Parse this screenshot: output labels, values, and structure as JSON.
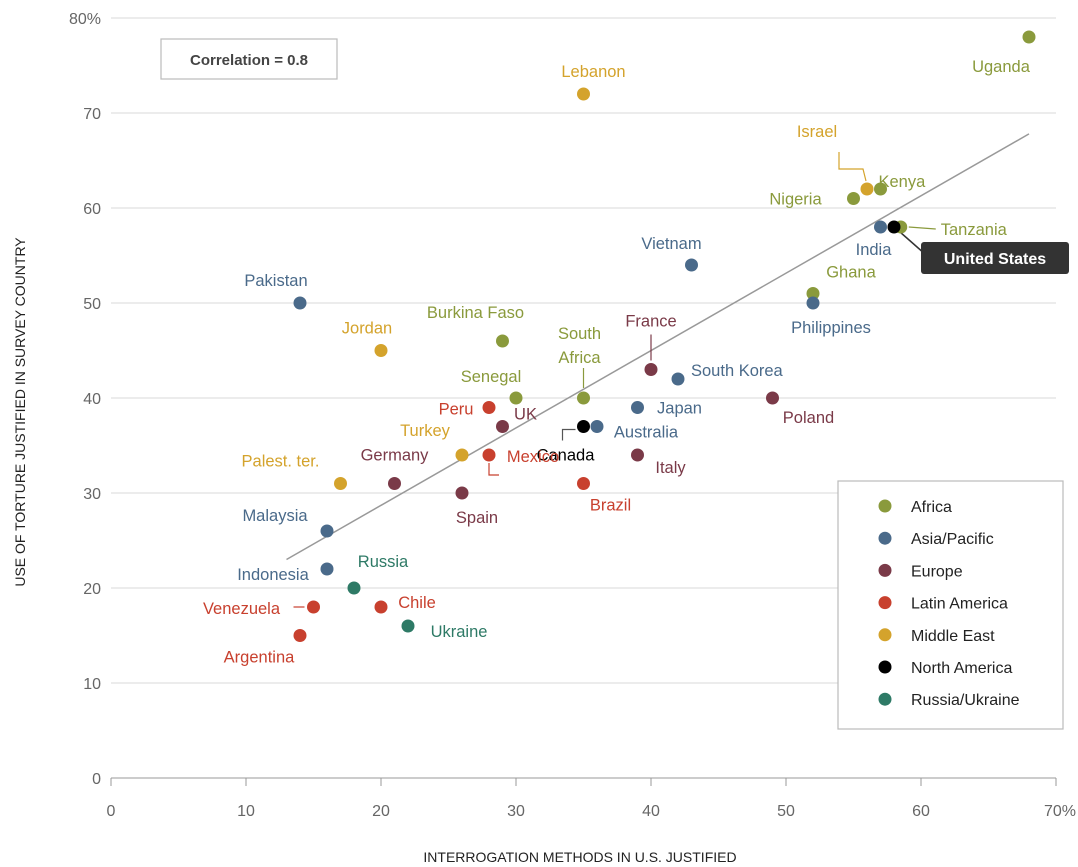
{
  "chart_data": {
    "type": "scatter",
    "xlabel": "INTERROGATION METHODS IN U.S. JUSTIFIED",
    "ylabel": "USE OF TORTURE JUSTIFIED IN SURVEY COUNTRY",
    "xlim": [
      0,
      70
    ],
    "ylim": [
      0,
      80
    ],
    "x_ticks": [
      "0",
      "10",
      "20",
      "30",
      "40",
      "50",
      "60",
      "70%"
    ],
    "y_ticks": [
      "0",
      "10",
      "20",
      "30",
      "40",
      "50",
      "60",
      "70",
      "80%"
    ],
    "grid": "horizontal",
    "annotation": "Correlation = 0.8",
    "trendline": {
      "x": [
        13,
        68
      ],
      "y": [
        23,
        67.8
      ]
    },
    "legend_position": "bottom-right",
    "groups": [
      {
        "name": "Africa",
        "color": "#8a9a3c"
      },
      {
        "name": "Asia/Pacific",
        "color": "#4a6a8a"
      },
      {
        "name": "Europe",
        "color": "#7a3a48"
      },
      {
        "name": "Latin America",
        "color": "#c8402e"
      },
      {
        "name": "Middle East",
        "color": "#d4a32c"
      },
      {
        "name": "North America",
        "color": "#000000"
      },
      {
        "name": "Russia/Ukraine",
        "color": "#2e7a66"
      }
    ],
    "points": [
      {
        "label": "Uganda",
        "x": 68,
        "y": 78,
        "group": "Africa"
      },
      {
        "label": "Lebanon",
        "x": 35,
        "y": 72,
        "group": "Middle East"
      },
      {
        "label": "Israel",
        "x": 56,
        "y": 62,
        "group": "Middle East"
      },
      {
        "label": "Kenya",
        "x": 57,
        "y": 62,
        "group": "Africa"
      },
      {
        "label": "Nigeria",
        "x": 55,
        "y": 61,
        "group": "Africa"
      },
      {
        "label": "India",
        "x": 57,
        "y": 58,
        "group": "Asia/Pacific"
      },
      {
        "label": "Tanzania",
        "x": 58.5,
        "y": 58,
        "group": "Africa"
      },
      {
        "label": "United States",
        "x": 58,
        "y": 58,
        "group": "North America"
      },
      {
        "label": "Vietnam",
        "x": 43,
        "y": 54,
        "group": "Asia/Pacific"
      },
      {
        "label": "Ghana",
        "x": 52,
        "y": 51,
        "group": "Africa"
      },
      {
        "label": "Philippines",
        "x": 52,
        "y": 50,
        "group": "Asia/Pacific"
      },
      {
        "label": "Pakistan",
        "x": 14,
        "y": 50,
        "group": "Asia/Pacific"
      },
      {
        "label": "Burkina Faso",
        "x": 29,
        "y": 46,
        "group": "Africa"
      },
      {
        "label": "Jordan",
        "x": 20,
        "y": 45,
        "group": "Middle East"
      },
      {
        "label": "France",
        "x": 40,
        "y": 43,
        "group": "Europe"
      },
      {
        "label": "South Korea",
        "x": 42,
        "y": 42,
        "group": "Asia/Pacific"
      },
      {
        "label": "South Africa",
        "x": 35,
        "y": 40,
        "group": "Africa"
      },
      {
        "label": "Senegal",
        "x": 30,
        "y": 40,
        "group": "Africa"
      },
      {
        "label": "Poland",
        "x": 49,
        "y": 40,
        "group": "Europe"
      },
      {
        "label": "Peru",
        "x": 28,
        "y": 39,
        "group": "Latin America"
      },
      {
        "label": "Japan",
        "x": 39,
        "y": 39,
        "group": "Asia/Pacific"
      },
      {
        "label": "UK",
        "x": 29,
        "y": 37,
        "group": "Europe"
      },
      {
        "label": "Canada",
        "x": 35,
        "y": 37,
        "group": "North America"
      },
      {
        "label": "Australia",
        "x": 36,
        "y": 37,
        "group": "Asia/Pacific"
      },
      {
        "label": "Turkey",
        "x": 26,
        "y": 34,
        "group": "Middle East"
      },
      {
        "label": "Mexico",
        "x": 28,
        "y": 34,
        "group": "Latin America"
      },
      {
        "label": "Italy",
        "x": 39,
        "y": 34,
        "group": "Europe"
      },
      {
        "label": "Germany",
        "x": 21,
        "y": 31,
        "group": "Europe"
      },
      {
        "label": "Palest. ter.",
        "x": 17,
        "y": 31,
        "group": "Middle East"
      },
      {
        "label": "Brazil",
        "x": 35,
        "y": 31,
        "group": "Latin America"
      },
      {
        "label": "Spain",
        "x": 26,
        "y": 30,
        "group": "Europe"
      },
      {
        "label": "Malaysia",
        "x": 16,
        "y": 26,
        "group": "Asia/Pacific"
      },
      {
        "label": "Indonesia",
        "x": 16,
        "y": 22,
        "group": "Asia/Pacific"
      },
      {
        "label": "Russia",
        "x": 18,
        "y": 20,
        "group": "Russia/Ukraine"
      },
      {
        "label": "Venezuela",
        "x": 15,
        "y": 18,
        "group": "Latin America"
      },
      {
        "label": "Chile",
        "x": 20,
        "y": 18,
        "group": "Latin America"
      },
      {
        "label": "Ukraine",
        "x": 22,
        "y": 16,
        "group": "Russia/Ukraine"
      },
      {
        "label": "Argentina",
        "x": 14,
        "y": 15,
        "group": "Latin America"
      }
    ]
  }
}
